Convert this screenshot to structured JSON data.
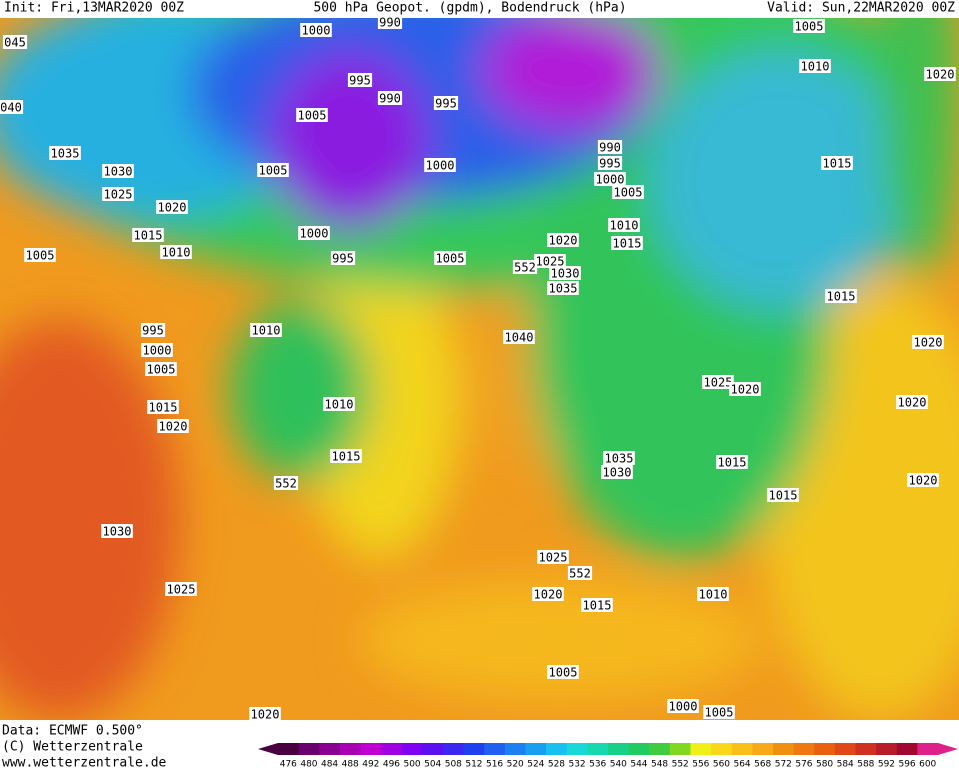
{
  "header": {
    "init": "Init: Fri,13MAR2020 00Z",
    "title": "500 hPa Geopot. (gpdm), Bodendruck (hPa)",
    "valid": "Valid: Sun,22MAR2020 00Z"
  },
  "footer": {
    "data": "Data: ECMWF  0.500°",
    "copyright": "(C) Wetterzentrale",
    "url": "www.wetterzentrale.de"
  },
  "colorbar": {
    "labels": [
      "476",
      "480",
      "484",
      "488",
      "492",
      "496",
      "500",
      "504",
      "508",
      "512",
      "516",
      "520",
      "524",
      "528",
      "532",
      "536",
      "540",
      "544",
      "548",
      "552",
      "556",
      "560",
      "564",
      "568",
      "572",
      "576",
      "580",
      "584",
      "588",
      "592",
      "596",
      "600"
    ]
  },
  "contour_labels": [
    "1000",
    "990",
    "995",
    "990",
    "995",
    "1005",
    "1005",
    "1000",
    "1000",
    "995",
    "1005",
    "1035",
    "1030",
    "1025",
    "1020",
    "1015",
    "1010",
    "1005",
    "995",
    "1000",
    "1005",
    "1015",
    "1020",
    "1010",
    "1010",
    "1015",
    "1040",
    "1020",
    "1025",
    "1030",
    "1035",
    "990",
    "995",
    "1000",
    "1005",
    "1010",
    "1015",
    "1005",
    "1010",
    "1020",
    "1015",
    "1015",
    "1025",
    "1020",
    "1020",
    "1020",
    "1035",
    "1030",
    "1015",
    "1020",
    "1015",
    "1030",
    "1025",
    "1025",
    "1020",
    "1015",
    "1010",
    "1005",
    "1000",
    "1005",
    "1020",
    "045",
    "040",
    "552",
    "552",
    "552"
  ]
}
